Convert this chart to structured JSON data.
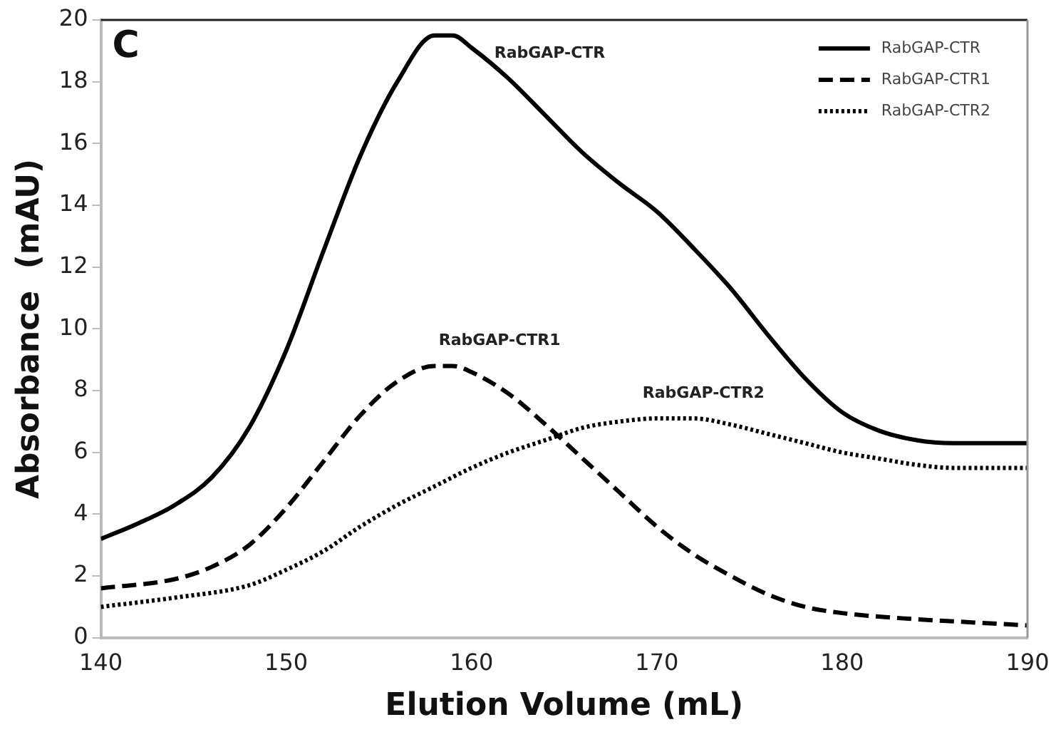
{
  "chart_data": {
    "type": "line",
    "xlabel": "Elution Volume (mL)",
    "ylabel": "Absorbance  (mAU)",
    "xlim": [
      140,
      190
    ],
    "xticks": [
      140,
      150,
      160,
      170,
      180,
      190
    ],
    "ylim": [
      0,
      20
    ],
    "yticks": [
      0,
      2,
      4,
      6,
      8,
      10,
      12,
      14,
      16,
      18,
      20
    ],
    "grid": false,
    "legend": "top right",
    "marker": "none",
    "annotations": [
      "C",
      {
        "text": "RabGAP-CTR",
        "x": 162,
        "y": 18.1
      },
      {
        "text": "RabGAP-CTR1",
        "x": 159,
        "y": 8.8
      },
      {
        "text": "RabGAP-CTR2",
        "x": 170,
        "y": 7.1
      }
    ],
    "series": [
      {
        "name": "RabGAP-CTR",
        "color": "#000000",
        "line_style": "solid",
        "x": [
          140,
          142,
          144,
          146,
          148,
          150,
          152,
          154,
          156,
          158,
          159,
          160,
          162,
          164,
          166,
          168,
          170,
          172,
          174,
          176,
          178,
          180,
          182,
          184,
          186,
          188,
          190
        ],
        "values": [
          3.2,
          3.7,
          4.3,
          5.2,
          6.8,
          9.3,
          12.5,
          15.6,
          18.0,
          19.5,
          19.5,
          19.1,
          18.1,
          16.9,
          15.7,
          14.7,
          13.8,
          12.6,
          11.3,
          9.8,
          8.4,
          7.3,
          6.7,
          6.4,
          6.3,
          6.3,
          6.3
        ]
      },
      {
        "name": "RabGAP-CTR1",
        "color": "#000000",
        "line_style": "dashed",
        "x": [
          140,
          144,
          146,
          148,
          150,
          152,
          154,
          156,
          158,
          159,
          160,
          162,
          164,
          166,
          168,
          170,
          172,
          174,
          176,
          178,
          180,
          184,
          187,
          190
        ],
        "values": [
          1.6,
          1.9,
          2.3,
          3.0,
          4.2,
          5.7,
          7.2,
          8.3,
          8.8,
          8.8,
          8.6,
          7.9,
          6.9,
          5.8,
          4.7,
          3.6,
          2.7,
          2.0,
          1.4,
          1.0,
          0.8,
          0.6,
          0.5,
          0.4
        ]
      },
      {
        "name": "RabGAP-CTR2",
        "color": "#000000",
        "line_style": "dotted",
        "x": [
          140,
          144,
          148,
          150,
          152,
          154,
          156,
          158,
          160,
          162,
          164,
          166,
          168,
          170,
          172,
          174,
          176,
          178,
          180,
          182,
          184,
          186,
          190
        ],
        "values": [
          1.0,
          1.3,
          1.7,
          2.2,
          2.8,
          3.6,
          4.3,
          4.9,
          5.5,
          6.0,
          6.4,
          6.8,
          7.0,
          7.1,
          7.1,
          6.9,
          6.6,
          6.3,
          6.0,
          5.8,
          5.6,
          5.5,
          5.5
        ]
      }
    ]
  }
}
